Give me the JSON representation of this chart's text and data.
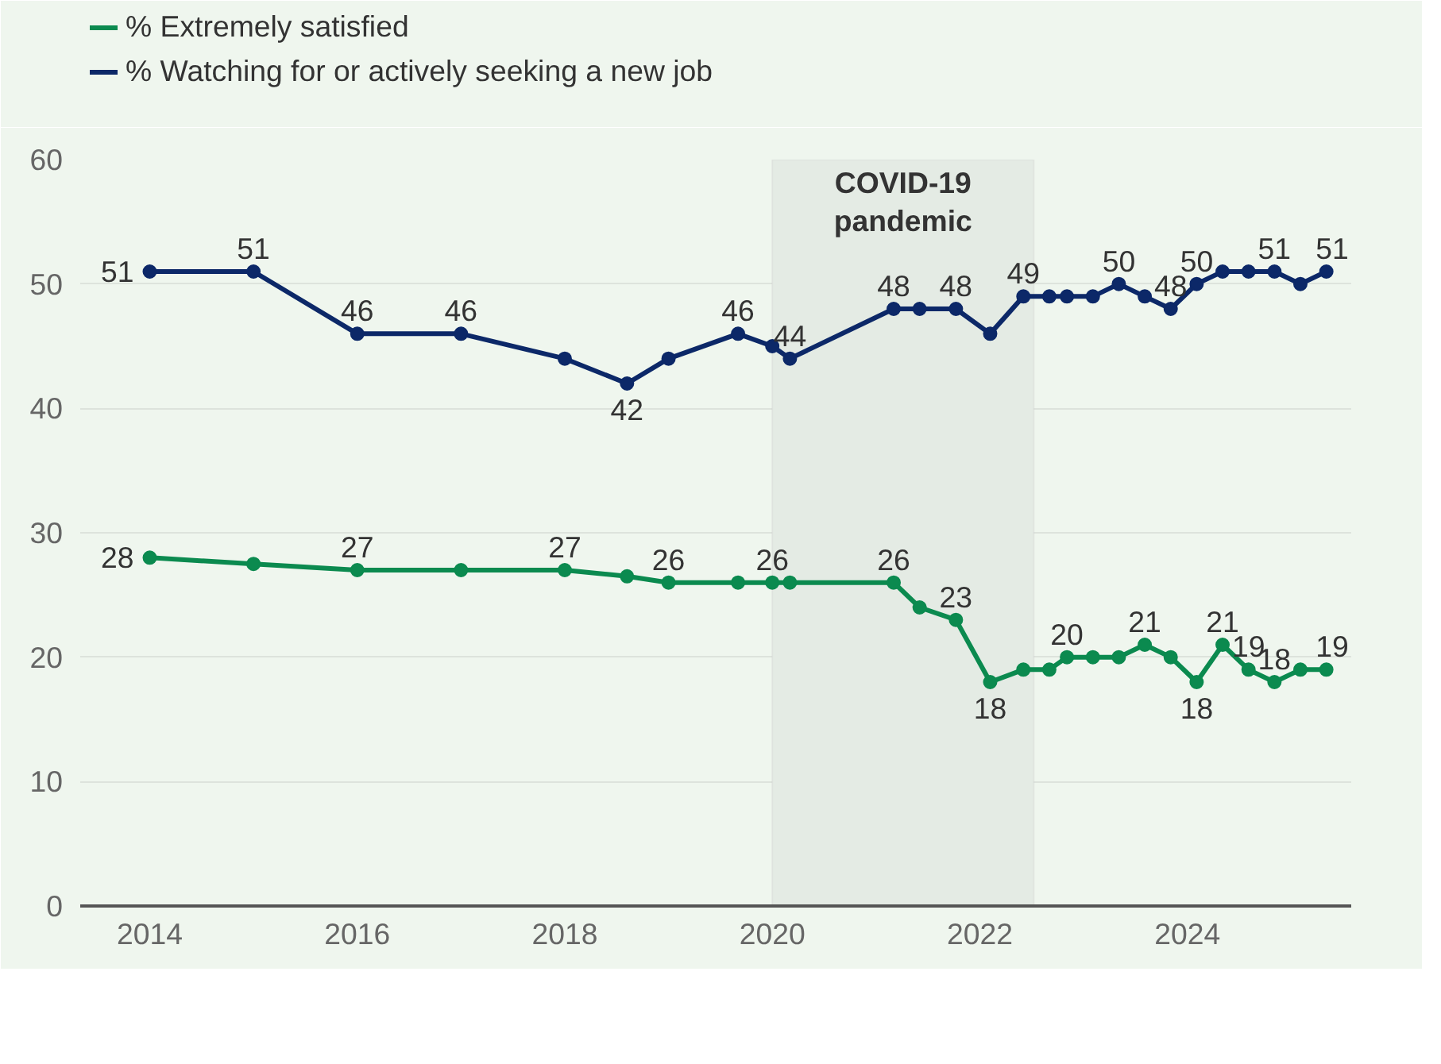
{
  "chart_data": {
    "type": "line",
    "x": [
      2014.0,
      2015.0,
      2016.0,
      2017.0,
      2018.0,
      2018.6,
      2019.0,
      2019.67,
      2020.0,
      2020.17,
      2021.17,
      2021.42,
      2021.77,
      2022.1,
      2022.42,
      2022.67,
      2022.84,
      2023.09,
      2023.34,
      2023.59,
      2023.84,
      2024.09,
      2024.34,
      2024.59,
      2024.84,
      2025.09,
      2025.34
    ],
    "series": [
      {
        "name": "% Extremely satisfied",
        "color": "#0b8a4f",
        "values": [
          28,
          27.5,
          27,
          27,
          27,
          26.5,
          26,
          26,
          26,
          26,
          26,
          24,
          23,
          18,
          19,
          19,
          20,
          20,
          20,
          21,
          20,
          18,
          21,
          19,
          18,
          19,
          19
        ],
        "value_labels": [
          "28",
          null,
          "27",
          null,
          "27",
          null,
          "26",
          null,
          "26",
          null,
          "26",
          null,
          "23",
          "18",
          null,
          null,
          "20",
          null,
          null,
          "21",
          null,
          "18",
          "21",
          "19",
          "18",
          null,
          "19"
        ]
      },
      {
        "name": "% Watching for or actively seeking a new job",
        "color": "#0c2868",
        "values": [
          51,
          51,
          46,
          46,
          44,
          42,
          44,
          46,
          45,
          44,
          48,
          48,
          48,
          46,
          49,
          49,
          49,
          49,
          50,
          49,
          48,
          50,
          51,
          51,
          51,
          50,
          51
        ],
        "value_labels": [
          "51",
          "51",
          "46",
          "46",
          null,
          "42",
          null,
          "46",
          null,
          "44",
          "48",
          null,
          "48",
          null,
          "49",
          null,
          null,
          null,
          "50",
          null,
          "48",
          "50",
          null,
          null,
          "51",
          null,
          "51"
        ]
      }
    ],
    "xlim": [
      2013.33,
      2025.58
    ],
    "xticks": [
      2014,
      2016,
      2018,
      2020,
      2022,
      2024
    ],
    "ylim": [
      0,
      60
    ],
    "yticks": [
      0,
      10,
      20,
      30,
      40,
      50,
      60
    ],
    "bands": [
      {
        "axis": "x",
        "from": 2020.0,
        "to": 2022.52,
        "label": "COVID-19\npandemic",
        "color": "#e4ebe4"
      }
    ],
    "grid": "y",
    "legend": "top left",
    "marker": "circle",
    "line_style": "solid"
  }
}
